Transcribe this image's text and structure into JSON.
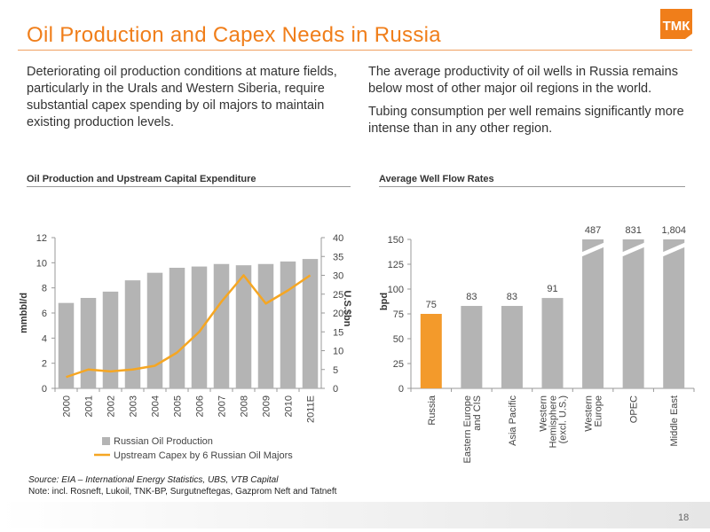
{
  "header": {
    "title": "Oil Production and Capex Needs in Russia",
    "logo_text": "ТМК"
  },
  "text_left": "Deteriorating oil production conditions at mature fields, particularly in the Urals and Western Siberia, require substantial capex spending by oil  majors to maintain existing production levels.",
  "text_right": [
    "The average productivity of oil wells in Russia remains below most of other major oil regions in the world.",
    "Tubing consumption per well remains significantly more intense than in any other region."
  ],
  "colors": {
    "accent": "#f07e1a",
    "bar_grey": "#b4b4b4",
    "bar_orange": "#f39a2b",
    "line_orange": "#f5a623"
  },
  "chart_data": [
    {
      "type": "bar",
      "title": "Oil Production and Upstream Capital Expenditure",
      "categories": [
        "2000",
        "2001",
        "2002",
        "2003",
        "2004",
        "2005",
        "2006",
        "2007",
        "2008",
        "2009",
        "2010",
        "2011E"
      ],
      "series": [
        {
          "name": "Russian Oil Production",
          "type": "bar",
          "axis": "left",
          "values": [
            6.8,
            7.2,
            7.7,
            8.6,
            9.2,
            9.6,
            9.7,
            9.9,
            9.8,
            9.9,
            10.1,
            10.3
          ]
        },
        {
          "name": "Upstream Capex by 6 Russian Oil Majors",
          "type": "line",
          "axis": "right",
          "values": [
            3,
            5,
            4.5,
            5,
            6,
            9.5,
            15,
            23,
            30,
            22.5,
            26,
            30
          ]
        }
      ],
      "ylabel": "mmbbl/d",
      "ylim": [
        0,
        12
      ],
      "yticks": [
        0,
        2,
        4,
        6,
        8,
        10,
        12
      ],
      "y2label": "U.S.$bn",
      "y2lim": [
        0,
        40
      ],
      "y2ticks": [
        0,
        5,
        10,
        15,
        20,
        25,
        30,
        35,
        40
      ],
      "legend": "bottom-left",
      "grid": false
    },
    {
      "type": "bar",
      "title": "Average Well Flow Rates",
      "categories": [
        "Russia",
        "Eastern Europe and CIS",
        "Asia Pacific",
        "Western Hemisphere (excl. U.S.)",
        "Western Europe",
        "OPEC",
        "Middle East"
      ],
      "values": [
        75,
        83,
        83,
        91,
        487,
        831,
        1804
      ],
      "data_labels": [
        "75",
        "83",
        "83",
        "91",
        "487",
        "831",
        "1,804"
      ],
      "axis_break": [
        false,
        false,
        false,
        false,
        true,
        true,
        true
      ],
      "ylabel": "bpd",
      "ylim": [
        0,
        150
      ],
      "yticks": [
        0,
        25,
        50,
        75,
        100,
        125,
        150
      ],
      "grid": false
    }
  ],
  "source": "Source: EIA – International Energy Statistics, UBS, VTB Capital",
  "note": "Note: incl. Rosneft, Lukoil, TNK-BP, Surgutneftegas, Gazprom Neft and Tatneft",
  "page_number": "18"
}
